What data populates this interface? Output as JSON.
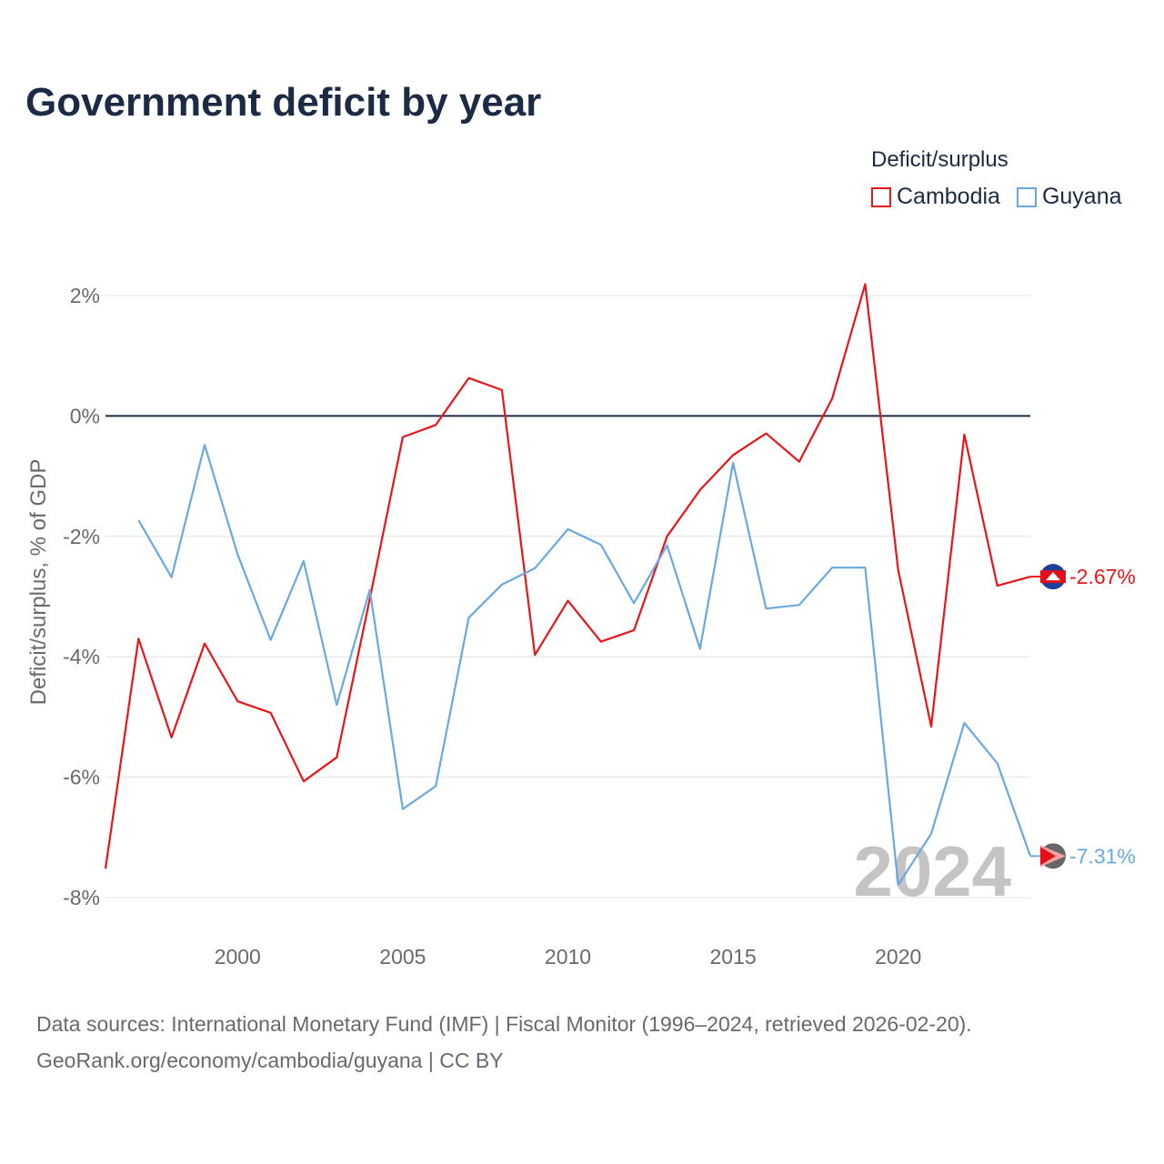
{
  "title": "Government deficit by year",
  "legend": {
    "title": "Deficit/surplus",
    "items": [
      {
        "label": "Cambodia",
        "color": "#e8161a"
      },
      {
        "label": "Guyana",
        "color": "#6aa8e0"
      }
    ]
  },
  "year_watermark": "2024",
  "chart_data": {
    "type": "line",
    "xlabel": "",
    "ylabel": "Deficit/surplus, % of GDP",
    "xlim": [
      1996,
      2024
    ],
    "ylim": [
      -8.5,
      3
    ],
    "x_ticks": [
      2000,
      2005,
      2010,
      2015,
      2020
    ],
    "x_tick_labels": [
      "2000",
      "2005",
      "2010",
      "2015",
      "2020"
    ],
    "y_ticks": [
      2,
      0,
      -2,
      -4,
      -6,
      -8
    ],
    "y_tick_labels": [
      "2%",
      "0%",
      "-2%",
      "-4%",
      "-6%",
      "-8%"
    ],
    "x": [
      1996,
      1997,
      1998,
      1999,
      2000,
      2001,
      2002,
      2003,
      2004,
      2005,
      2006,
      2007,
      2008,
      2009,
      2010,
      2011,
      2012,
      2013,
      2014,
      2015,
      2016,
      2017,
      2018,
      2019,
      2020,
      2021,
      2022,
      2023,
      2024
    ],
    "series": [
      {
        "name": "Cambodia",
        "color": "#e8161a",
        "values": [
          -7.52,
          -3.7,
          -5.34,
          -3.78,
          -4.74,
          -4.93,
          -6.07,
          -5.67,
          -3.04,
          -0.35,
          -0.15,
          0.63,
          0.43,
          -3.97,
          -3.07,
          -3.75,
          -3.56,
          -2.0,
          -1.23,
          -0.65,
          -0.29,
          -0.76,
          0.29,
          2.19,
          -2.56,
          -5.16,
          -0.31,
          -2.82,
          -2.67
        ],
        "end_label": "-2.67%"
      },
      {
        "name": "Guyana",
        "color": "#6aa8e0",
        "values": [
          null,
          -1.73,
          -2.68,
          -0.48,
          -2.3,
          -3.72,
          -2.41,
          -4.8,
          -2.89,
          -6.53,
          -6.15,
          -3.35,
          -2.8,
          -2.53,
          -1.88,
          -2.14,
          -3.11,
          -2.15,
          -3.87,
          -0.78,
          -3.2,
          -3.14,
          -2.52,
          -2.52,
          -7.79,
          -6.94,
          -5.1,
          -5.77,
          -7.31
        ],
        "end_label": "-7.31%"
      }
    ],
    "zero_line": true,
    "grid": true
  },
  "footer": {
    "line1": "Data sources: International Monetary Fund (IMF) | Fiscal Monitor (1996–2024, retrieved 2026-02-20).",
    "line2": "GeoRank.org/economy/cambodia/guyana | CC BY"
  }
}
